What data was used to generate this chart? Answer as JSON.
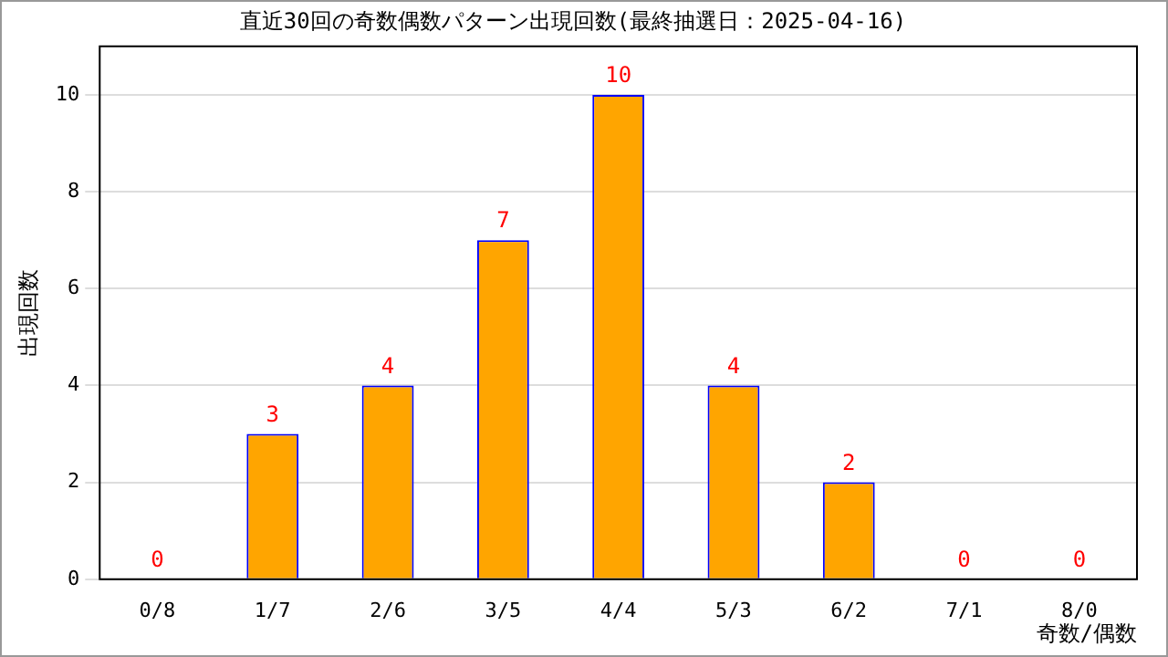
{
  "chart_data": {
    "type": "bar",
    "title": "直近30回の奇数偶数パターン出現回数(最終抽選日：2025-04-16)",
    "xlabel": "奇数/偶数",
    "ylabel": "出現回数",
    "categories": [
      "0/8",
      "1/7",
      "2/6",
      "3/5",
      "4/4",
      "5/3",
      "6/2",
      "7/1",
      "8/0"
    ],
    "values": [
      0,
      3,
      4,
      7,
      10,
      4,
      2,
      0,
      0
    ],
    "color": "#ffa500",
    "ylim": [
      0,
      11
    ],
    "yticks": [
      0,
      2,
      4,
      6,
      8,
      10
    ],
    "grid": "y",
    "legend": false,
    "data_labels": true
  }
}
